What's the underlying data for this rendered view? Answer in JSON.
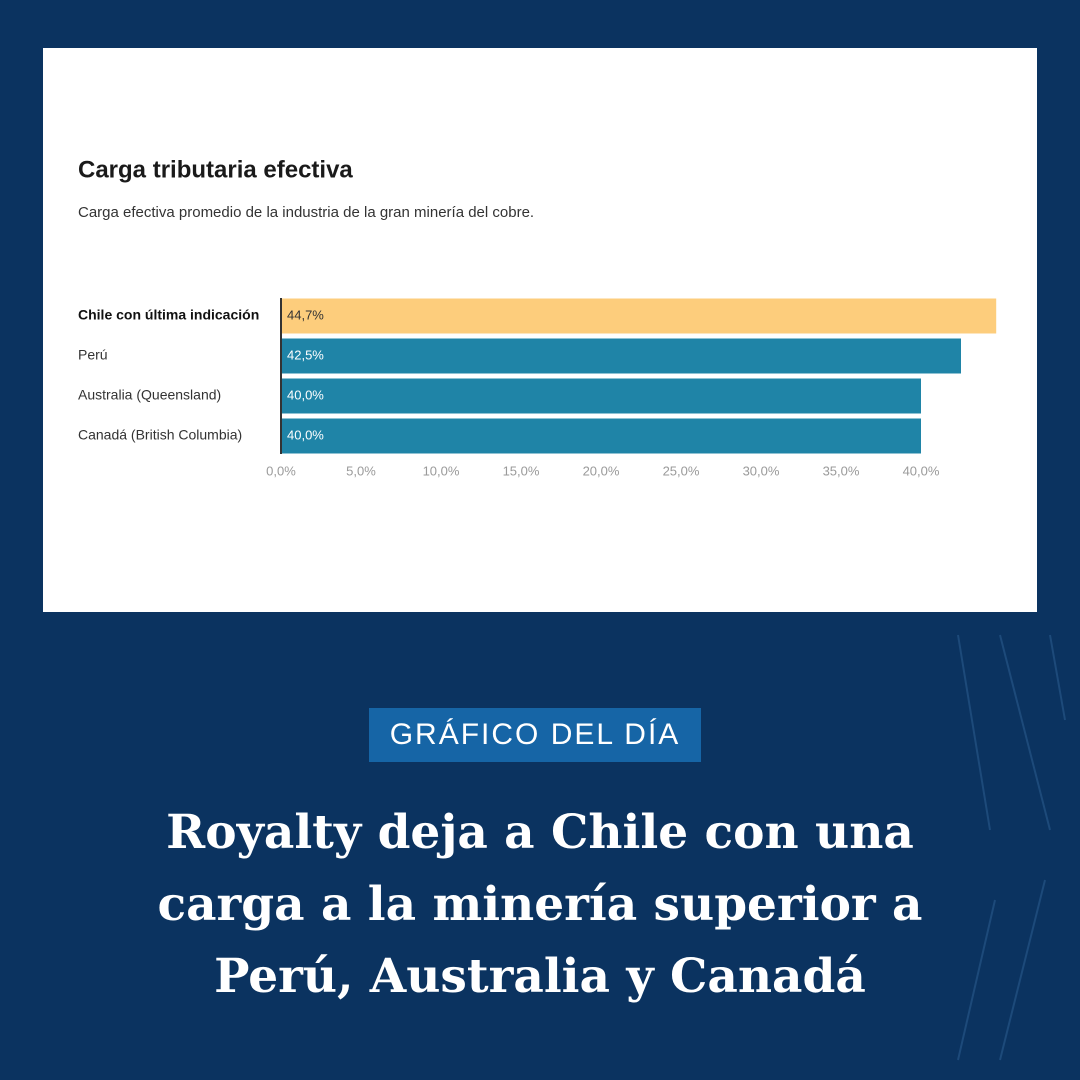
{
  "chart_data": {
    "type": "bar",
    "orientation": "horizontal",
    "title": "Carga tributaria efectiva",
    "subtitle": "Carga efectiva promedio de la industria de la gran minería del cobre.",
    "categories": [
      "Chile con última indicación",
      "Perú",
      "Australia (Queensland)",
      "Canadá (British Columbia)"
    ],
    "values": [
      44.7,
      42.5,
      40.0,
      40.0
    ],
    "value_labels": [
      "44,7%",
      "42,5%",
      "40,0%",
      "40,0%"
    ],
    "colors": [
      "#fdcd7c",
      "#1f84a7",
      "#1f84a7",
      "#1f84a7"
    ],
    "xlim": [
      0,
      45
    ],
    "xticks": [
      {
        "value": 0,
        "label": "0,0%"
      },
      {
        "value": 5,
        "label": "5,0%"
      },
      {
        "value": 10,
        "label": "10,0%"
      },
      {
        "value": 15,
        "label": "15,0%"
      },
      {
        "value": 20,
        "label": "20,0%"
      },
      {
        "value": 25,
        "label": "25,0%"
      },
      {
        "value": 30,
        "label": "30,0%"
      },
      {
        "value": 35,
        "label": "35,0%"
      },
      {
        "value": 40,
        "label": "40,0%"
      }
    ],
    "grid": false
  },
  "badge": "GRÁFICO DEL DÍA",
  "headline": [
    "Royalty deja a Chile con una",
    "carga a la minería superior a",
    "Perú, Australia y Canadá"
  ]
}
